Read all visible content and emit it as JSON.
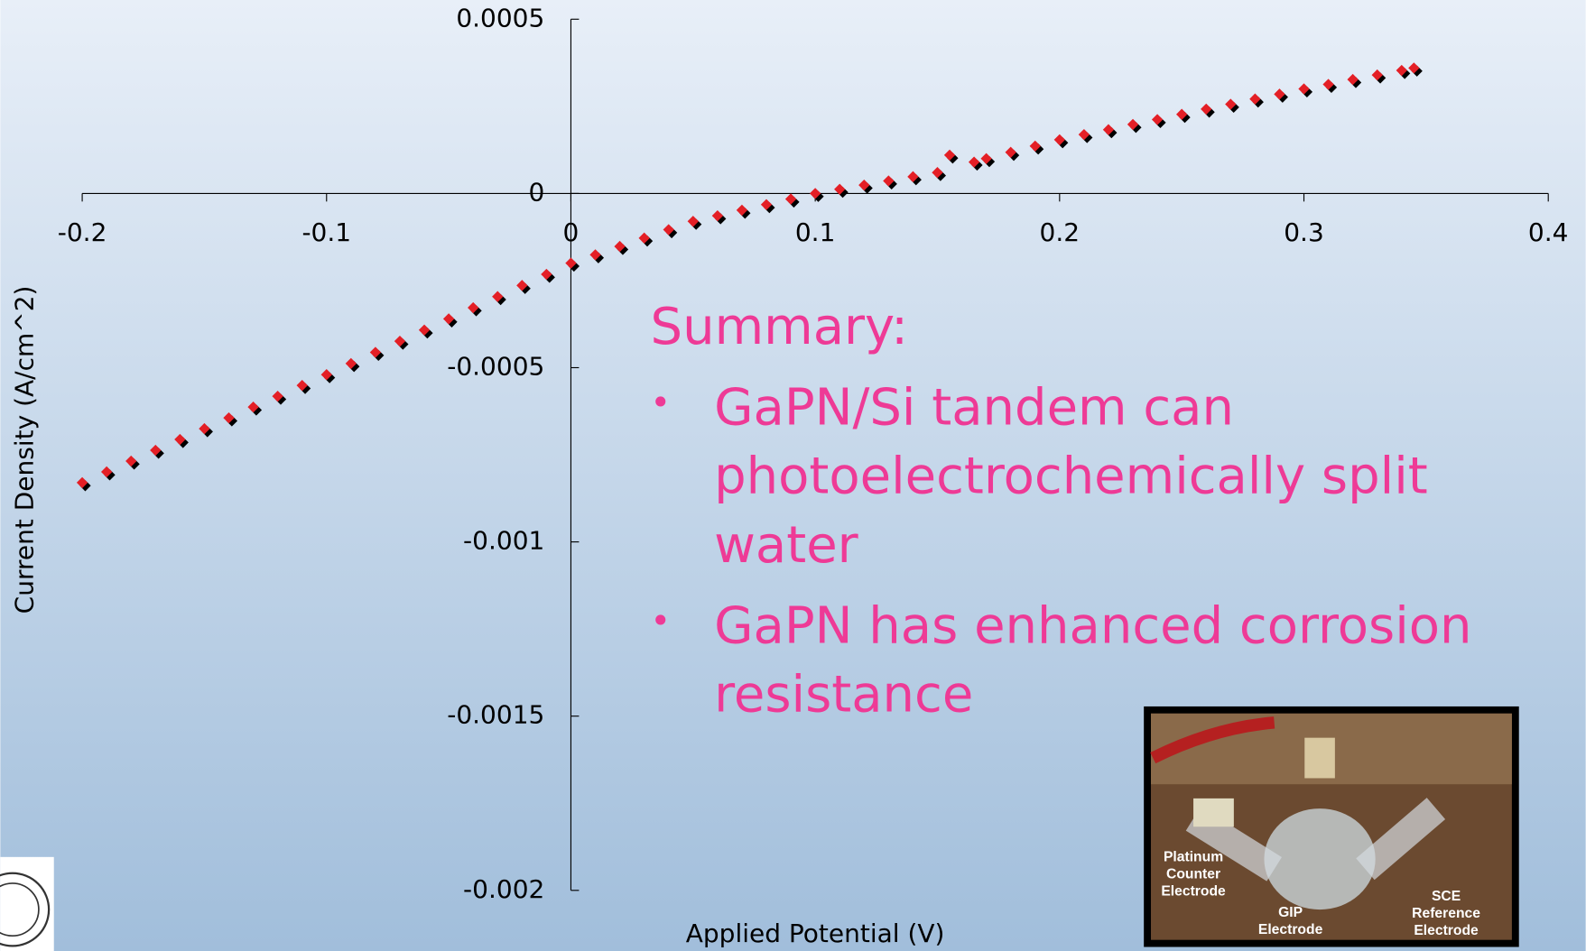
{
  "chart_data": {
    "type": "scatter",
    "x_label": "Applied Potential (V)",
    "y_label": "Current Density (A/cm^2)",
    "xlim": [
      -0.2,
      0.4
    ],
    "xticks": [
      -0.2,
      -0.1,
      0,
      0.1,
      0.2,
      0.3,
      0.4
    ],
    "ylim": [
      -0.002,
      0.0005
    ],
    "yticks": [
      0.0005,
      0,
      -0.0005,
      -0.001,
      -0.0015,
      -0.002
    ],
    "color": "#e41f26",
    "shadow_color": "#000000",
    "x": [
      -0.2,
      -0.19,
      -0.18,
      -0.17,
      -0.16,
      -0.15,
      -0.14,
      -0.13,
      -0.12,
      -0.11,
      -0.1,
      -0.09,
      -0.08,
      -0.07,
      -0.06,
      -0.05,
      -0.04,
      -0.03,
      -0.02,
      -0.01,
      0,
      0.01,
      0.02,
      0.03,
      0.04,
      0.05,
      0.06,
      0.07,
      0.08,
      0.09,
      0.1,
      0.11,
      0.12,
      0.13,
      0.14,
      0.15,
      0.155,
      0.165,
      0.17,
      0.18,
      0.19,
      0.2,
      0.21,
      0.22,
      0.23,
      0.24,
      0.25,
      0.26,
      0.27,
      0.28,
      0.29,
      0.3,
      0.31,
      0.32,
      0.33,
      0.34,
      0.345
    ],
    "values": [
      -0.00083,
      -0.000799,
      -0.000768,
      -0.000737,
      -0.000706,
      -0.000675,
      -0.000644,
      -0.000613,
      -0.000582,
      -0.000551,
      -0.00052,
      -0.000488,
      -0.000456,
      -0.000424,
      -0.000392,
      -0.00036,
      -0.000328,
      -0.000296,
      -0.000264,
      -0.000232,
      -0.0002,
      -0.000176,
      -0.000152,
      -0.000128,
      -0.000104,
      -8e-05,
      -6.4e-05,
      -4.8e-05,
      -3.2e-05,
      -1.6e-05,
      0,
      1.2e-05,
      2.4e-05,
      3.6e-05,
      4.8e-05,
      6e-05,
      0.00011,
      9e-05,
      0.0001,
      0.000118,
      0.000136,
      0.000154,
      0.000169,
      0.000183,
      0.000198,
      0.000212,
      0.000227,
      0.000242,
      0.000256,
      0.000271,
      0.000285,
      0.0003,
      0.000313,
      0.000327,
      0.00034,
      0.000353,
      0.00036
    ]
  },
  "summary": {
    "heading": "Summary:",
    "bullets": [
      [
        "GaPN/Si tandem can",
        "photoelectrochemically split",
        "water"
      ],
      [
        "GaPN has enhanced corrosion",
        "resistance"
      ]
    ]
  },
  "photo": {
    "labels": [
      [
        "Platinum",
        "Counter",
        "Electrode"
      ],
      [
        "GIP",
        "Electrode"
      ],
      [
        "SCE",
        "Reference",
        "Electrode"
      ]
    ]
  }
}
